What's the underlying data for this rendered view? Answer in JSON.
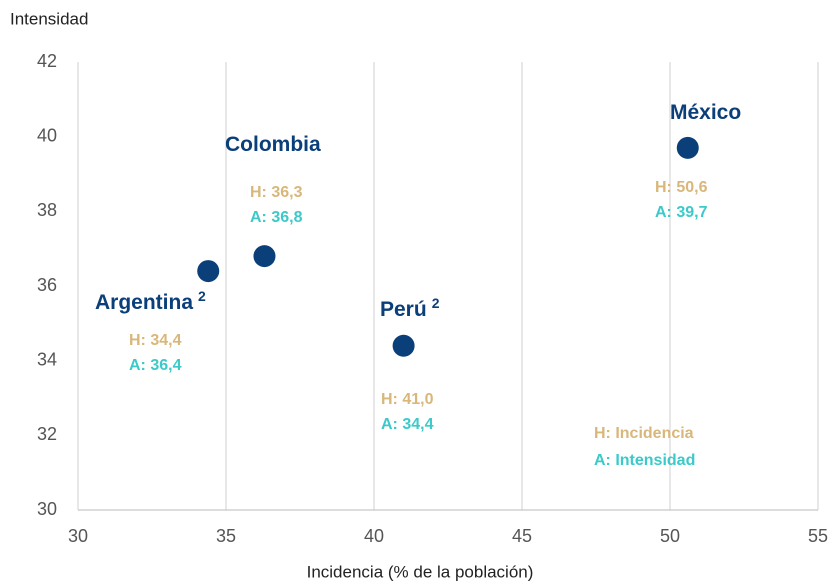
{
  "chart_data": {
    "type": "scatter",
    "y_axis_label": "Intensidad",
    "x_axis_label": "Incidencia (% de la población)",
    "categories": [
      "Argentina",
      "Colombia",
      "Perú",
      "México"
    ],
    "notes": [
      "2",
      null,
      "2",
      null
    ],
    "x": [
      34.4,
      36.3,
      41.0,
      50.6
    ],
    "values": [
      36.4,
      36.8,
      34.4,
      39.7
    ],
    "x_labels": [
      "H: 34,4",
      "H: 36,3",
      "H: 41,0",
      "H: 50,6"
    ],
    "value_labels": [
      "A: 36,4",
      "A: 36,8",
      "A: 34,4",
      "A: 39,7"
    ],
    "color": "#0b3f7a",
    "x_label_color": "#d9b77a",
    "value_label_color": "#3cc9c9",
    "legend": [
      "H: Incidencia",
      "A: Intensidad"
    ],
    "xlim": [
      30,
      55
    ],
    "xticks": [
      30,
      35,
      40,
      45,
      50,
      55
    ],
    "ylim": [
      30,
      42
    ],
    "yticks": [
      30,
      32,
      34,
      36,
      38,
      40,
      42
    ],
    "grid": "x"
  }
}
